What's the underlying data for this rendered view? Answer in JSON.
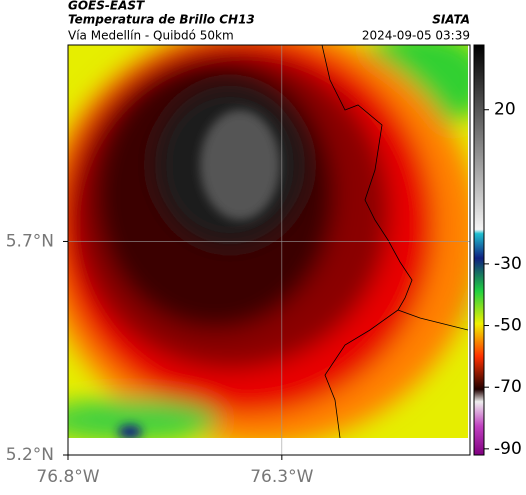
{
  "header": {
    "source": "GOES-EAST",
    "title": "Temperatura de Brillo CH13",
    "subtitle": "Vía Medellín - Quibdó 50km",
    "credit": "SIATA",
    "timestamp": "2024-09-05 03:39"
  },
  "map": {
    "xlim": [
      -76.8,
      -75.86
    ],
    "ylim": [
      5.2,
      6.16
    ],
    "xticks": [
      {
        "value": -76.8,
        "label": "76.8°W"
      },
      {
        "value": -76.3,
        "label": "76.3°W"
      }
    ],
    "yticks": [
      {
        "value": 5.2,
        "label": "5.2°N"
      },
      {
        "value": 5.7,
        "label": "5.7°N"
      }
    ],
    "grid": true,
    "colorbar": {
      "clim": [
        -92,
        41
      ],
      "ticks": [
        20,
        -30,
        -50,
        -70,
        -90
      ]
    }
  }
}
